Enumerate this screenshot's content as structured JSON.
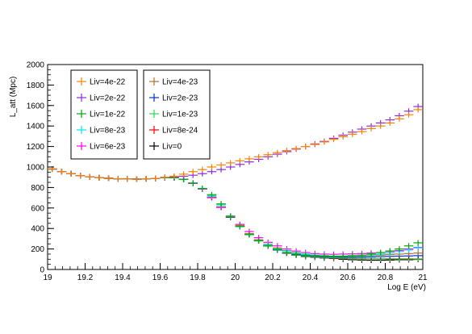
{
  "chart_data": {
    "type": "scatter",
    "title": "",
    "xlabel": "Log E (eV)",
    "ylabel": "L_att (Mpc)",
    "xlim": [
      19,
      21
    ],
    "ylim": [
      0,
      2000
    ],
    "x_ticks": [
      "19",
      "19.2",
      "19.4",
      "19.6",
      "19.8",
      "20",
      "20.2",
      "20.4",
      "20.6",
      "20.8",
      "21"
    ],
    "y_ticks": [
      "0",
      "200",
      "400",
      "600",
      "800",
      "1000",
      "1200",
      "1400",
      "1600",
      "1800",
      "2000"
    ],
    "grid": false,
    "legend_position": "top-left",
    "x_error": 0.025,
    "x": [
      19.025,
      19.075,
      19.125,
      19.175,
      19.225,
      19.275,
      19.325,
      19.375,
      19.425,
      19.475,
      19.525,
      19.575,
      19.625,
      19.675,
      19.725,
      19.775,
      19.825,
      19.875,
      19.925,
      19.975,
      20.025,
      20.075,
      20.125,
      20.175,
      20.225,
      20.275,
      20.325,
      20.375,
      20.425,
      20.475,
      20.525,
      20.575,
      20.625,
      20.675,
      20.725,
      20.775,
      20.825,
      20.875,
      20.925,
      20.975
    ],
    "series": [
      {
        "name": "Liv=4e-22",
        "color": "#ff8000",
        "values": [
          980,
          955,
          935,
          915,
          903,
          895,
          890,
          885,
          883,
          882,
          885,
          888,
          900,
          910,
          930,
          955,
          975,
          1000,
          1020,
          1040,
          1060,
          1080,
          1100,
          1120,
          1140,
          1160,
          1180,
          1200,
          1220,
          1245,
          1270,
          1295,
          1320,
          1345,
          1375,
          1400,
          1430,
          1470,
          1510,
          1560
        ]
      },
      {
        "name": "Liv=2e-22",
        "color": "#8a2be2",
        "values": [
          980,
          955,
          935,
          915,
          903,
          895,
          890,
          885,
          883,
          882,
          885,
          888,
          898,
          905,
          910,
          920,
          935,
          955,
          975,
          1000,
          1025,
          1050,
          1075,
          1100,
          1125,
          1150,
          1175,
          1200,
          1225,
          1250,
          1280,
          1310,
          1340,
          1370,
          1400,
          1430,
          1460,
          1500,
          1545,
          1590
        ]
      },
      {
        "name": "Liv=1e-22",
        "color": "#00aa00",
        "values": [
          980,
          955,
          935,
          915,
          903,
          895,
          890,
          885,
          883,
          882,
          885,
          888,
          895,
          895,
          880,
          840,
          790,
          730,
          640,
          520,
          420,
          340,
          280,
          230,
          195,
          165,
          150,
          140,
          135,
          130,
          128,
          130,
          135,
          140,
          150,
          165,
          180,
          200,
          230,
          260
        ]
      },
      {
        "name": "Liv=8e-23",
        "color": "#00e5ee",
        "values": [
          980,
          955,
          935,
          915,
          903,
          895,
          890,
          885,
          883,
          882,
          885,
          888,
          895,
          895,
          880,
          840,
          790,
          720,
          630,
          520,
          420,
          340,
          280,
          240,
          200,
          180,
          160,
          150,
          140,
          135,
          130,
          130,
          132,
          135,
          140,
          150,
          160,
          175,
          190,
          210
        ]
      },
      {
        "name": "Liv=6e-23",
        "color": "#ff00ff",
        "values": [
          980,
          955,
          935,
          915,
          903,
          895,
          890,
          885,
          883,
          882,
          885,
          888,
          895,
          895,
          880,
          845,
          785,
          700,
          605,
          520,
          440,
          370,
          310,
          265,
          230,
          200,
          180,
          165,
          155,
          150,
          148,
          150,
          152,
          155,
          160,
          165,
          175,
          185,
          200,
          215
        ]
      },
      {
        "name": "Liv=4e-23",
        "color": "#b0722e",
        "values": [
          980,
          955,
          935,
          915,
          903,
          895,
          890,
          885,
          883,
          882,
          885,
          888,
          895,
          895,
          880,
          840,
          785,
          705,
          610,
          515,
          430,
          350,
          290,
          245,
          210,
          185,
          165,
          150,
          140,
          135,
          130,
          128,
          128,
          130,
          135,
          140,
          145,
          150,
          155,
          160
        ]
      },
      {
        "name": "Liv=2e-23",
        "color": "#0033cc",
        "values": [
          980,
          955,
          935,
          915,
          903,
          895,
          890,
          885,
          883,
          882,
          885,
          888,
          895,
          895,
          880,
          840,
          785,
          705,
          610,
          510,
          420,
          340,
          280,
          230,
          190,
          160,
          145,
          135,
          128,
          125,
          122,
          120,
          120,
          120,
          122,
          125,
          128,
          130,
          132,
          135
        ]
      },
      {
        "name": "Liv=1e-23",
        "color": "#22dd55",
        "values": [
          980,
          955,
          935,
          915,
          903,
          895,
          890,
          885,
          883,
          882,
          885,
          888,
          895,
          895,
          880,
          840,
          785,
          705,
          610,
          510,
          420,
          340,
          280,
          230,
          190,
          160,
          140,
          128,
          122,
          118,
          115,
          112,
          110,
          108,
          107,
          106,
          106,
          105,
          105,
          104
        ]
      },
      {
        "name": "Liv=8e-24",
        "color": "#ff0000",
        "values": [
          980,
          955,
          935,
          915,
          903,
          895,
          890,
          885,
          883,
          882,
          885,
          888,
          895,
          895,
          880,
          840,
          785,
          705,
          610,
          510,
          420,
          340,
          280,
          230,
          190,
          160,
          140,
          128,
          120,
          115,
          112,
          110,
          108,
          105,
          104,
          103,
          102,
          101,
          100,
          100
        ]
      },
      {
        "name": "Liv=0",
        "color": "#000000",
        "values": [
          980,
          955,
          935,
          915,
          903,
          895,
          890,
          885,
          883,
          882,
          885,
          888,
          895,
          895,
          880,
          840,
          785,
          705,
          610,
          510,
          420,
          340,
          280,
          230,
          190,
          160,
          140,
          125,
          118,
          112,
          108,
          100,
          95,
          92,
          90,
          90,
          92,
          95,
          95,
          98
        ]
      }
    ]
  }
}
